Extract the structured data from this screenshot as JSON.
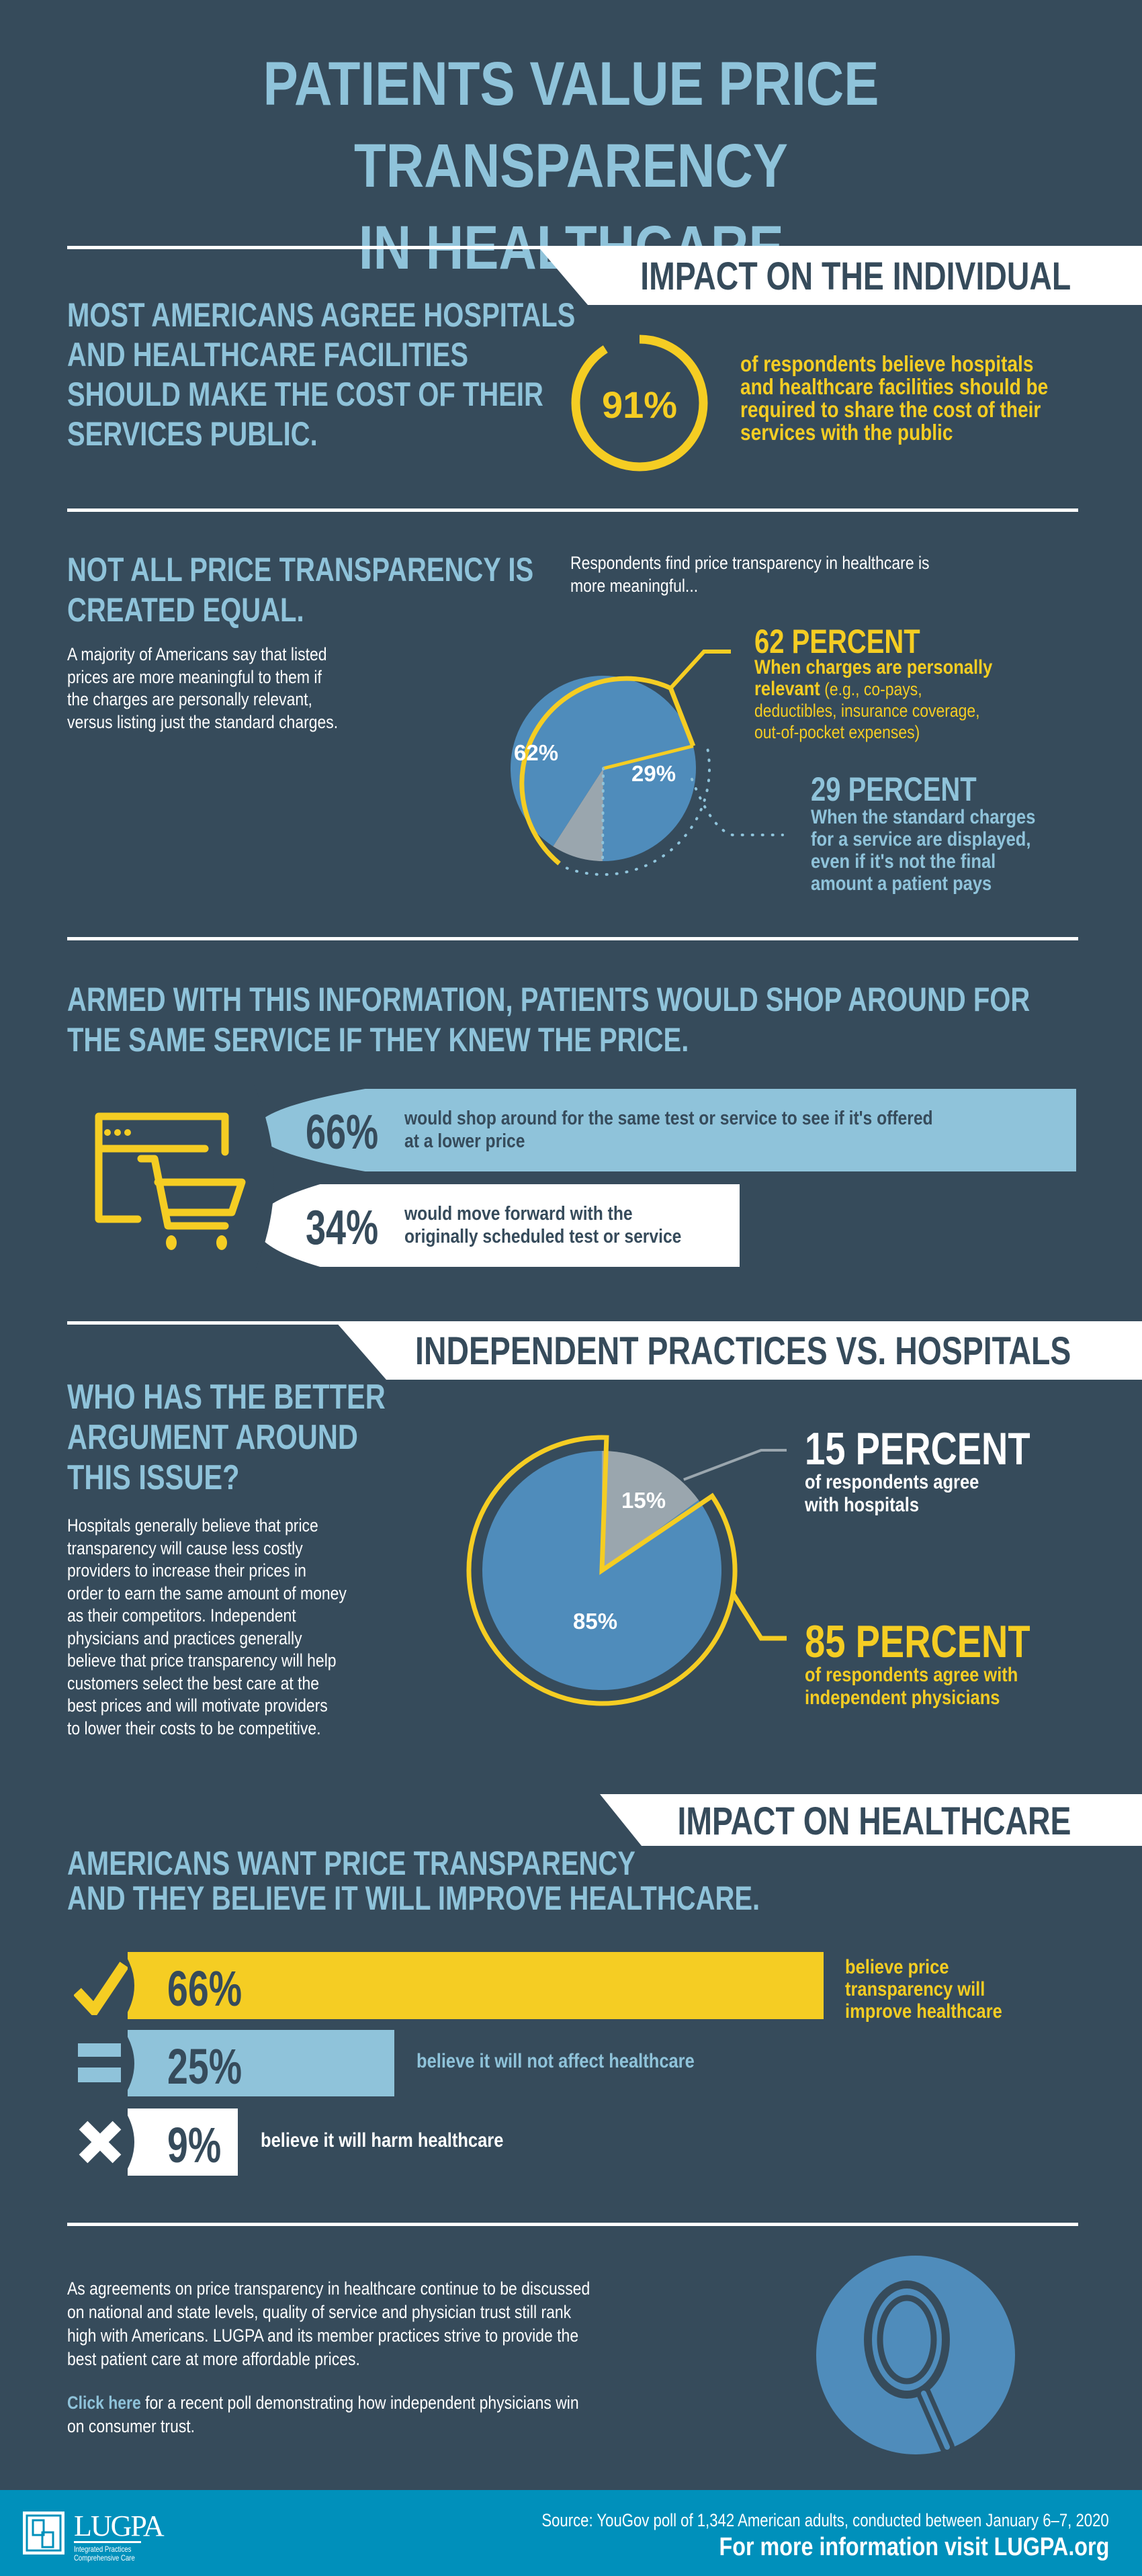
{
  "title": {
    "line1": "PATIENTS VALUE PRICE TRANSPARENCY",
    "line2": "IN HEALTHCARE"
  },
  "colors": {
    "background": "#364b5b",
    "light_blue": "#8fc3da",
    "yellow": "#f5cd23",
    "mid_blue": "#4f8cbb",
    "gray": "#9aa6ae",
    "footer": "#0090bb"
  },
  "section1": {
    "banner": "IMPACT ON THE INDIVIDUAL",
    "heading": [
      "MOST AMERICANS AGREE HOSPITALS",
      "AND HEALTHCARE FACILITIES",
      "SHOULD MAKE THE COST OF THEIR",
      "SERVICES PUBLIC."
    ],
    "ring_value": 91,
    "ring_label": "91%",
    "ring_text": [
      "of respondents believe hospitals",
      "and healthcare facilities should be",
      "required to share the cost of their",
      "services with the public"
    ]
  },
  "section2": {
    "heading": [
      "NOT ALL PRICE TRANSPARENCY IS",
      "CREATED EQUAL."
    ],
    "paragraph": [
      "A majority of Americans say that listed",
      "prices are more meaningful to them if",
      "the charges are personally relevant,",
      "versus listing just the standard charges."
    ],
    "intro": [
      "Respondents find price transparency in healthcare is",
      "more meaningful..."
    ],
    "pie": {
      "personal": 62,
      "standard": 29,
      "personal_label": "62%",
      "standard_label": "29%"
    },
    "callout1": {
      "title": "62 PERCENT",
      "bold1": "When charges are personally",
      "bold2": "relevant",
      "rest2": " (e.g., co-pays,",
      "line3": "deductibles, insurance coverage,",
      "line4": "out-of-pocket expenses)"
    },
    "callout2": {
      "title": "29 PERCENT",
      "lines": [
        "When the standard charges",
        "for a service are displayed,",
        "even if it's not the final",
        "amount a patient pays"
      ]
    }
  },
  "section3": {
    "heading": [
      "ARMED WITH THIS INFORMATION, PATIENTS WOULD SHOP AROUND FOR",
      "THE SAME SERVICE IF THEY KNEW THE PRICE."
    ],
    "icon": "shopping-cart-browser-icon",
    "bars": [
      {
        "value": 66,
        "label": "66%",
        "lines": [
          "would shop around for the same test or service to see if it's offered",
          "at a lower price"
        ]
      },
      {
        "value": 34,
        "label": "34%",
        "lines": [
          "would move forward with the",
          "originally scheduled test or service"
        ]
      }
    ]
  },
  "section4": {
    "banner": "INDEPENDENT PRACTICES VS. HOSPITALS",
    "heading": [
      "WHO HAS THE BETTER",
      "ARGUMENT AROUND",
      "THIS ISSUE?"
    ],
    "paragraph": [
      "Hospitals generally believe that price",
      "transparency will cause less costly",
      "providers to increase their prices in",
      "order to earn the same amount of money",
      "as their competitors. Independent",
      "physicians and practices generally",
      "believe that price transparency will help",
      "customers select the best care at the",
      "best prices and will motivate providers",
      "to lower their costs to be competitive."
    ],
    "pie": {
      "hospitals": 15,
      "independent": 85,
      "hospitals_label": "15%",
      "independent_label": "85%"
    },
    "callout1": {
      "title": "15 PERCENT",
      "lines": [
        "of respondents agree",
        "with hospitals"
      ]
    },
    "callout2": {
      "title": "85 PERCENT",
      "lines": [
        "of respondents agree with",
        "independent physicians"
      ]
    }
  },
  "section5": {
    "banner": "IMPACT ON HEALTHCARE",
    "heading": [
      "AMERICANS WANT PRICE TRANSPARENCY",
      "AND THEY BELIEVE IT WILL IMPROVE HEALTHCARE."
    ],
    "bars": [
      {
        "value": 66,
        "label": "66%",
        "icon": "checkmark-icon",
        "lines": [
          "believe price",
          "transparency will",
          "improve healthcare"
        ]
      },
      {
        "value": 25,
        "label": "25%",
        "icon": "equals-icon",
        "lines": [
          "believe it will not affect healthcare"
        ]
      },
      {
        "value": 9,
        "label": "9%",
        "icon": "x-icon",
        "lines": [
          "believe it will harm healthcare"
        ]
      }
    ]
  },
  "closing": {
    "paragraph": [
      "As agreements on price transparency in healthcare continue to be discussed",
      "on national and state levels, quality of service and physician trust still rank",
      "high with Americans. LUGPA and its member practices strive to provide the",
      "best patient care at more affordable prices."
    ],
    "link": "Click here",
    "link_rest": " for a recent poll demonstrating how independent physicians win",
    "link_line2": "on consumer trust.",
    "icon": "magnifying-glass-icon"
  },
  "footer": {
    "logo_name": "LUGPA",
    "logo_tag1": "Integrated Practices",
    "logo_tag2": "Comprehensive Care",
    "source": "Source: YouGov poll of 1,342 American adults, conducted between January 6–7, 2020",
    "more_info": "For more information visit LUGPA.org"
  }
}
